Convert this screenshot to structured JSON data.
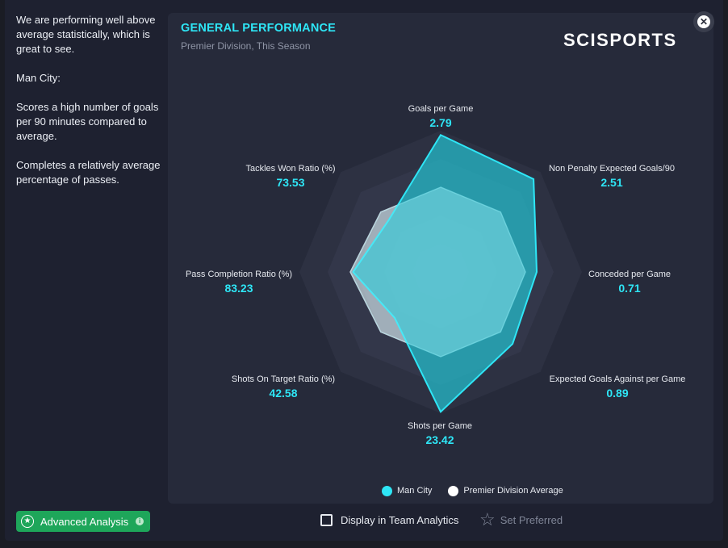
{
  "insight": {
    "paragraphs": [
      "We are performing well above average statistically, which is great to see.",
      "Man City:",
      "Scores a high number of goals per 90 minutes compared to average.",
      "Completes a relatively average percentage of passes."
    ]
  },
  "panel": {
    "title": "GENERAL PERFORMANCE",
    "subtitle": "Premier Division, This Season",
    "logo": "SCISPORTS"
  },
  "close": {
    "glyph": "✕"
  },
  "footer": {
    "advanced_analysis_label": "Advanced Analysis",
    "advanced_star": "★",
    "advanced_info": "i",
    "display_team_analytics_label": "Display in Team Analytics",
    "set_preferred_label": "Set Preferred",
    "set_preferred_star": "☆"
  },
  "colors": {
    "accent": "#2ee6f6",
    "team_fill": "#24bfcf",
    "average_fill": "#e9eef4",
    "advanced_button": "#1ea65a"
  },
  "chart_data": {
    "type": "radar",
    "title": "GENERAL PERFORMANCE",
    "subtitle": "Premier Division, This Season",
    "axes": [
      "Goals per Game",
      "Non Penalty Expected Goals/90",
      "Conceded per Game",
      "Expected Goals Against per Game",
      "Shots per Game",
      "Shots On Target Ratio (%)",
      "Pass Completion Ratio (%)",
      "Tackles Won Ratio (%)"
    ],
    "value_labels": [
      "2.79",
      "2.51",
      "0.71",
      "0.89",
      "23.42",
      "42.58",
      "83.23",
      "73.53"
    ],
    "series": [
      {
        "name": "Man City",
        "color": "#24bfcf",
        "values": [
          0.97,
          0.93,
          0.68,
          0.72,
          0.99,
          0.46,
          0.62,
          0.52
        ]
      },
      {
        "name": "Premier Division Average",
        "color": "#e9eef4",
        "values": [
          0.6,
          0.6,
          0.6,
          0.6,
          0.6,
          0.6,
          0.64,
          0.6
        ]
      }
    ],
    "rings": 5,
    "range": [
      0,
      1
    ],
    "legend": "bottom"
  }
}
